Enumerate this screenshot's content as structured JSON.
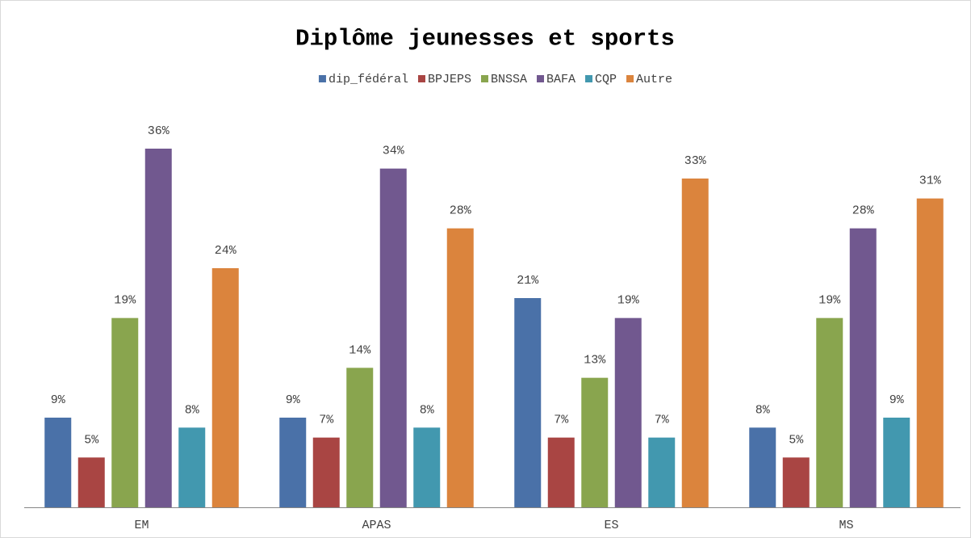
{
  "chart_data": {
    "type": "bar",
    "title": "Diplôme jeunesses et sports",
    "categories": [
      "EM",
      "APAS",
      "ES",
      "MS"
    ],
    "series": [
      {
        "name": "dip_fédéral",
        "color": "#4a71a8",
        "values": [
          9,
          9,
          21,
          8
        ],
        "value_labels": [
          "9%",
          "9%",
          "21%",
          "8%"
        ]
      },
      {
        "name": "BPJEPS",
        "color": "#a94543",
        "values": [
          5,
          7,
          7,
          5
        ],
        "value_labels": [
          "5%",
          "7%",
          "7%",
          "5%"
        ]
      },
      {
        "name": "BNSSA",
        "color": "#89a54e",
        "values": [
          19,
          14,
          13,
          19
        ],
        "value_labels": [
          "19%",
          "14%",
          "13%",
          "19%"
        ]
      },
      {
        "name": "BAFA",
        "color": "#71588f",
        "values": [
          36,
          34,
          19,
          28
        ],
        "value_labels": [
          "36%",
          "34%",
          "19%",
          "28%"
        ]
      },
      {
        "name": "CQP",
        "color": "#4298af",
        "values": [
          8,
          8,
          7,
          9
        ],
        "value_labels": [
          "8%",
          "8%",
          "7%",
          "9%"
        ]
      },
      {
        "name": "Autre",
        "color": "#db843d",
        "values": [
          24,
          28,
          33,
          31
        ],
        "value_labels": [
          "24%",
          "28%",
          "33%",
          "31%"
        ]
      }
    ],
    "legend": "top"
  }
}
